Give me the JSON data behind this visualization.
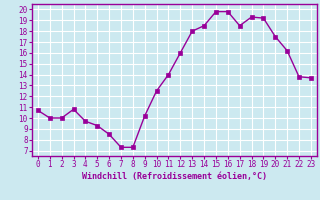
{
  "x": [
    0,
    1,
    2,
    3,
    4,
    5,
    6,
    7,
    8,
    9,
    10,
    11,
    12,
    13,
    14,
    15,
    16,
    17,
    18,
    19,
    20,
    21,
    22,
    23
  ],
  "y": [
    10.7,
    10.0,
    10.0,
    10.8,
    9.7,
    9.3,
    8.5,
    7.3,
    7.3,
    10.2,
    12.5,
    14.0,
    16.0,
    18.0,
    18.5,
    19.8,
    19.8,
    18.5,
    19.3,
    19.2,
    17.5,
    16.2,
    13.8,
    13.7
  ],
  "line_color": "#990099",
  "marker": "s",
  "markersize": 2.5,
  "linewidth": 1.0,
  "xlabel": "Windchill (Refroidissement éolien,°C)",
  "xlim": [
    -0.5,
    23.5
  ],
  "ylim": [
    6.5,
    20.5
  ],
  "yticks": [
    7,
    8,
    9,
    10,
    11,
    12,
    13,
    14,
    15,
    16,
    17,
    18,
    19,
    20
  ],
  "xticks": [
    0,
    1,
    2,
    3,
    4,
    5,
    6,
    7,
    8,
    9,
    10,
    11,
    12,
    13,
    14,
    15,
    16,
    17,
    18,
    19,
    20,
    21,
    22,
    23
  ],
  "bg_color": "#cce9f0",
  "grid_color": "#ffffff",
  "spine_color": "#990099",
  "tick_color": "#990099",
  "label_color": "#990099",
  "tick_fontsize": 5.5,
  "xlabel_fontsize": 6.0
}
